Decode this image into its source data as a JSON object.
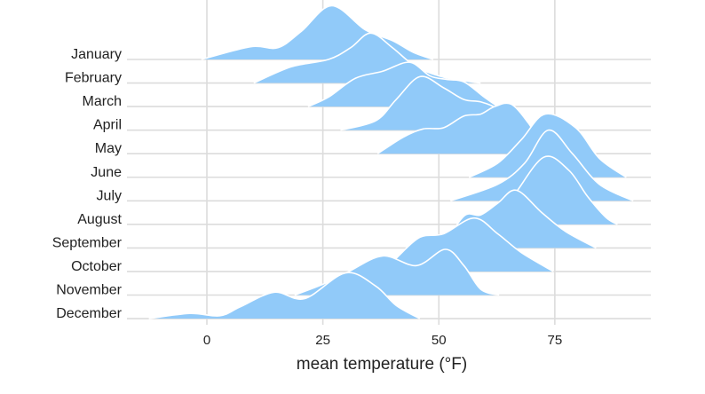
{
  "chart_data": {
    "type": "ridgeline",
    "title": "",
    "xlabel": "mean temperature (°F)",
    "ylabel": "",
    "xlim": [
      -15,
      95
    ],
    "x_ticks": [
      "0",
      "25",
      "50",
      "75"
    ],
    "x_tick_values": [
      0,
      25,
      50,
      75
    ],
    "grid": true,
    "fill_color": "#91CAF9",
    "outline_color": "#ffffff",
    "grid_color": "#dcdcdc",
    "series": [
      {
        "name": "January",
        "points": [
          [
            -1.2,
            0
          ],
          [
            9.4,
            0.54
          ],
          [
            15.3,
            0.5
          ],
          [
            20.4,
            1.2
          ],
          [
            26.9,
            2.28
          ],
          [
            34.2,
            1.25
          ],
          [
            40,
            0.8
          ],
          [
            44.5,
            0.3
          ],
          [
            48.8,
            0
          ]
        ]
      },
      {
        "name": "February",
        "points": [
          [
            10.1,
            0
          ],
          [
            18.2,
            0.69
          ],
          [
            26.2,
            1.0
          ],
          [
            31,
            1.5
          ],
          [
            35.3,
            2.12
          ],
          [
            40,
            1.5
          ],
          [
            45,
            0.7
          ],
          [
            51,
            0.25
          ],
          [
            59,
            0
          ]
        ]
      },
      {
        "name": "March",
        "points": [
          [
            21.8,
            0
          ],
          [
            26.2,
            0.4
          ],
          [
            32,
            1.2
          ],
          [
            37.9,
            1.5
          ],
          [
            43.7,
            1.88
          ],
          [
            48.1,
            1.3
          ],
          [
            51.8,
            1.15
          ],
          [
            55.4,
            1.05
          ],
          [
            59.8,
            0.4
          ],
          [
            62.7,
            0
          ]
        ]
      },
      {
        "name": "April",
        "points": [
          [
            28.8,
            0
          ],
          [
            36.4,
            0.4
          ],
          [
            40.8,
            1.3
          ],
          [
            45.9,
            2.27
          ],
          [
            51,
            1.8
          ],
          [
            55.4,
            1.3
          ],
          [
            59,
            1.2
          ],
          [
            62.7,
            0.9
          ],
          [
            66,
            0.3
          ],
          [
            69,
            0
          ]
        ]
      },
      {
        "name": "May",
        "points": [
          [
            36.8,
            0
          ],
          [
            42.3,
            0.7
          ],
          [
            46.6,
            1.05
          ],
          [
            51,
            1.1
          ],
          [
            55.4,
            1.6
          ],
          [
            59,
            1.68
          ],
          [
            62,
            2.0
          ],
          [
            65.6,
            2.1
          ],
          [
            69.3,
            1.3
          ],
          [
            72.2,
            0.4
          ],
          [
            75,
            0
          ]
        ]
      },
      {
        "name": "June",
        "points": [
          [
            56.5,
            0
          ],
          [
            62.7,
            0.6
          ],
          [
            67.8,
            1.6
          ],
          [
            72.9,
            2.68
          ],
          [
            79.5,
            2.1
          ],
          [
            84.6,
            0.8
          ],
          [
            90.4,
            0
          ]
        ]
      },
      {
        "name": "July",
        "points": [
          [
            52.5,
            0
          ],
          [
            62.7,
            0.7
          ],
          [
            68.5,
            1.6
          ],
          [
            73.6,
            3.0
          ],
          [
            78.8,
            2.0
          ],
          [
            84.6,
            0.7
          ],
          [
            91.9,
            0
          ]
        ]
      },
      {
        "name": "August",
        "points": [
          [
            55,
            0
          ],
          [
            62,
            0.5
          ],
          [
            66,
            1.2
          ],
          [
            72.6,
            2.85
          ],
          [
            78,
            2.3
          ],
          [
            82,
            1.2
          ],
          [
            86,
            0.3
          ],
          [
            88.5,
            0
          ]
        ]
      },
      {
        "name": "September",
        "points": [
          [
            50.7,
            0
          ],
          [
            55.4,
            1.35
          ],
          [
            59,
            1.4
          ],
          [
            62.7,
            1.9
          ],
          [
            66.7,
            2.45
          ],
          [
            72.2,
            1.5
          ],
          [
            77.3,
            0.7
          ],
          [
            83.9,
            0
          ]
        ]
      },
      {
        "name": "October",
        "points": [
          [
            38,
            0
          ],
          [
            41,
            0.6
          ],
          [
            45.9,
            1.45
          ],
          [
            51,
            1.6
          ],
          [
            57.6,
            2.27
          ],
          [
            62.7,
            1.6
          ],
          [
            67.8,
            0.8
          ],
          [
            74.7,
            0
          ]
        ]
      },
      {
        "name": "November",
        "points": [
          [
            18.9,
            0
          ],
          [
            25.5,
            0.5
          ],
          [
            30.6,
            1.0
          ],
          [
            37.9,
            1.66
          ],
          [
            45.2,
            1.25
          ],
          [
            51.4,
            1.94
          ],
          [
            55.4,
            1.25
          ],
          [
            59,
            0.25
          ],
          [
            63,
            0
          ]
        ]
      },
      {
        "name": "December",
        "points": [
          [
            -12.5,
            0
          ],
          [
            -3.7,
            0.22
          ],
          [
            2.8,
            0.12
          ],
          [
            7.2,
            0.5
          ],
          [
            14.5,
            1.12
          ],
          [
            21.1,
            0.85
          ],
          [
            29.9,
            1.94
          ],
          [
            36.4,
            1.38
          ],
          [
            40.8,
            0.56
          ],
          [
            45.9,
            0
          ]
        ]
      }
    ]
  }
}
